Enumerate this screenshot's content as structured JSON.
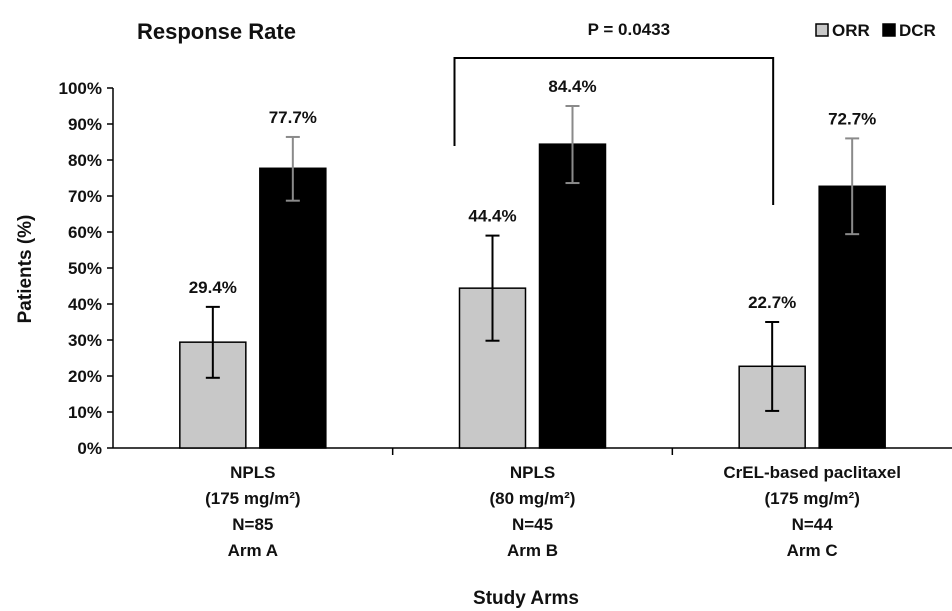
{
  "chart_data": {
    "type": "bar",
    "title": "Response Rate",
    "xlabel": "Study Arms",
    "ylabel": "Patients (%)",
    "ylim": [
      0,
      100
    ],
    "yticks": [
      "0%",
      "10%",
      "20%",
      "30%",
      "40%",
      "50%",
      "60%",
      "70%",
      "80%",
      "90%",
      "100%"
    ],
    "categories": [
      {
        "lines": [
          "NPLS",
          "(175 mg/m²)",
          "N=85",
          "Arm A"
        ]
      },
      {
        "lines": [
          "NPLS",
          "(80 mg/m²)",
          "N=45",
          "Arm B"
        ]
      },
      {
        "lines": [
          "CrEL-based paclitaxel",
          "(175 mg/m²)",
          "N=44",
          "Arm C"
        ]
      }
    ],
    "series": [
      {
        "name": "ORR",
        "color": "#c8c8c8",
        "values": [
          29.4,
          44.4,
          22.7
        ],
        "labels": [
          "29.4%",
          "44.4%",
          "22.7%"
        ],
        "err_low": [
          19.5,
          29.8,
          10.3
        ],
        "err_high": [
          39.2,
          59.0,
          35.0
        ]
      },
      {
        "name": "DCR",
        "color": "#000000",
        "values": [
          77.7,
          84.4,
          72.7
        ],
        "labels": [
          "77.7%",
          "84.4%",
          "72.7%"
        ],
        "err_low": [
          68.7,
          73.6,
          59.4
        ],
        "err_high": [
          86.4,
          95.0,
          86.0
        ]
      }
    ],
    "legend": "top-right",
    "grid": false,
    "annotation": {
      "text": "P = 0.0433",
      "from_category": 1,
      "to_category": 2
    }
  }
}
